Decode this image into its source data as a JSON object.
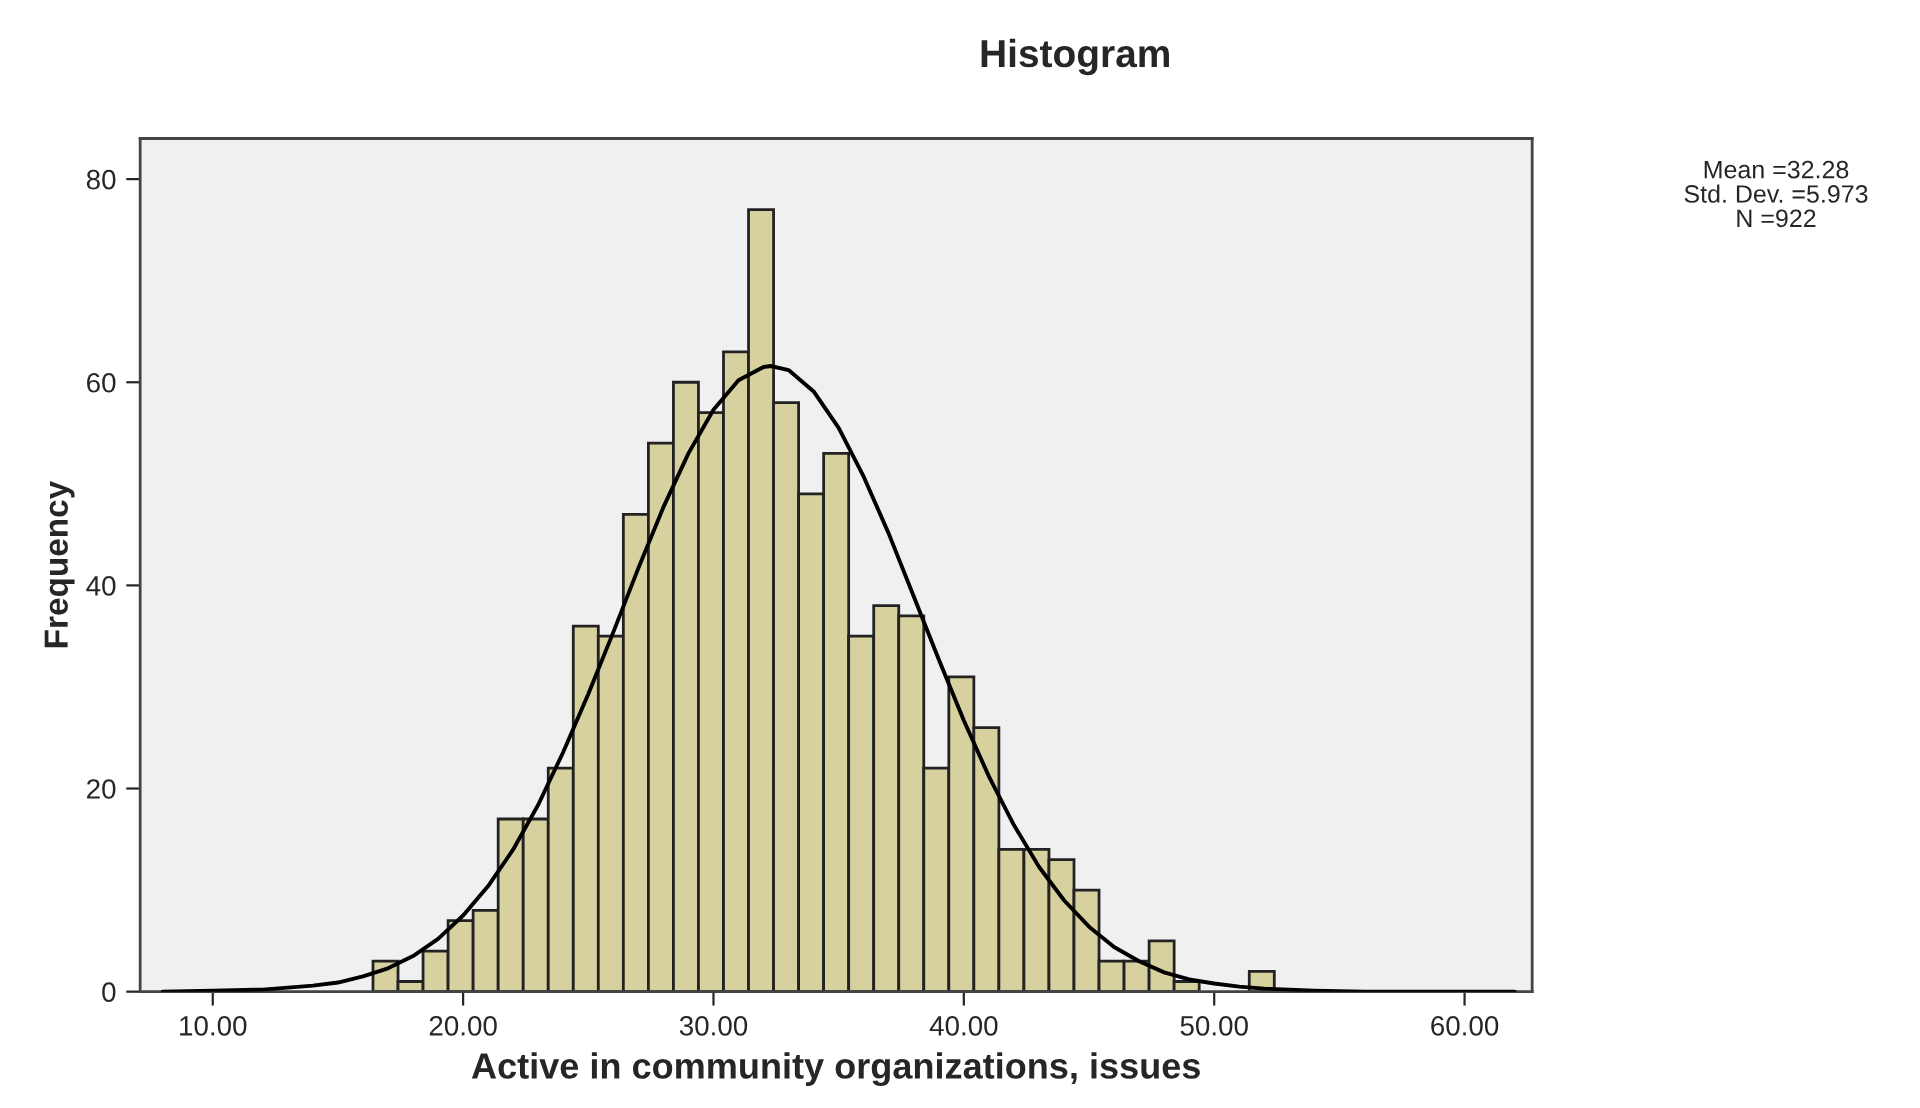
{
  "chart_data": {
    "type": "histogram",
    "title": "Histogram",
    "xlabel": "Active in community organizations, issues",
    "ylabel": "Frequency",
    "bins": [
      16.4,
      17.4,
      18.4,
      19.4,
      20.4,
      21.4,
      22.4,
      23.4,
      24.4,
      25.4,
      26.4,
      27.4,
      28.4,
      29.4,
      30.4,
      31.4,
      32.4,
      33.4,
      34.4,
      35.4,
      36.4,
      37.4,
      38.4,
      39.4,
      40.4,
      41.4,
      42.4,
      43.4,
      44.4,
      45.4,
      46.4,
      47.4,
      48.4,
      49.4,
      50.4,
      51.4,
      52.4
    ],
    "values": [
      3,
      1,
      4,
      7,
      8,
      17,
      17,
      22,
      36,
      35,
      47,
      54,
      60,
      57,
      63,
      77,
      58,
      49,
      53,
      35,
      38,
      37,
      22,
      31,
      26,
      14,
      14,
      13,
      10,
      3,
      3,
      5,
      1,
      0,
      0,
      2
    ],
    "color": "#d6d19e",
    "series": [
      {
        "type": "line",
        "color": "#000000",
        "x": [
          8,
          10,
          12,
          14,
          15,
          16,
          17,
          18,
          19,
          20,
          21,
          22,
          23,
          24,
          25,
          26,
          27,
          28,
          29,
          30,
          31,
          32,
          32.28,
          33,
          34,
          35,
          36,
          37,
          38,
          39,
          40,
          41,
          42,
          43,
          44,
          45,
          46,
          47,
          48,
          49,
          50,
          51,
          52,
          54,
          56,
          58,
          60,
          62
        ],
        "values": [
          0.0,
          0.1,
          0.2,
          0.6,
          0.9,
          1.5,
          2.3,
          3.5,
          5.2,
          7.5,
          10.4,
          14.0,
          18.4,
          23.6,
          29.3,
          35.4,
          41.7,
          47.7,
          53.0,
          57.3,
          60.2,
          61.5,
          61.6,
          61.2,
          59.1,
          55.5,
          50.7,
          45.1,
          38.9,
          32.7,
          26.7,
          21.2,
          16.4,
          12.3,
          9.0,
          6.4,
          4.4,
          3.0,
          1.9,
          1.2,
          0.8,
          0.5,
          0.3,
          0.1,
          0.0,
          0.0,
          0.0,
          0.0
        ]
      }
    ],
    "xlim": [
      7.1,
      62.7
    ],
    "ylim": [
      0,
      84
    ],
    "xticks": [
      {
        "value": 10,
        "label": "10.00"
      },
      {
        "value": 20,
        "label": "20.00"
      },
      {
        "value": 30,
        "label": "30.00"
      },
      {
        "value": 40,
        "label": "40.00"
      },
      {
        "value": 50,
        "label": "50.00"
      },
      {
        "value": 60,
        "label": "60.00"
      }
    ],
    "yticks": [
      0,
      20,
      40,
      60,
      80
    ],
    "grid": false,
    "legend": false,
    "annotations": [
      "Mean =32.28",
      "Std. Dev. =5.973",
      "N =922"
    ]
  }
}
